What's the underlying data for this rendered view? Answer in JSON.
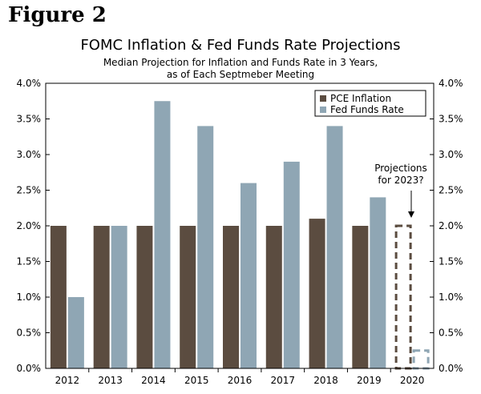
{
  "figure_label": "Figure 2",
  "chart_data": {
    "type": "bar",
    "title": "FOMC Inflation & Fed Funds Rate Projections",
    "subtitle_lines": [
      "Median Projection for Inflation and Funds Rate in 3 Years,",
      "as of Each Septmeber Meeting"
    ],
    "categories": [
      "2012",
      "2013",
      "2014",
      "2015",
      "2016",
      "2017",
      "2018",
      "2019",
      "2020"
    ],
    "series": [
      {
        "name": "PCE Inflation",
        "color": "#5b4c40",
        "values": [
          2.0,
          2.0,
          2.0,
          2.0,
          2.0,
          2.0,
          2.1,
          2.0,
          null
        ]
      },
      {
        "name": "Fed Funds Rate",
        "color": "#8fa6b4",
        "values": [
          1.0,
          2.0,
          3.75,
          3.4,
          2.6,
          2.9,
          3.4,
          2.4,
          null
        ]
      }
    ],
    "projection": {
      "category": "2020",
      "values": [
        2.0,
        0.25
      ],
      "annotation": [
        "Projections",
        "for 2023?"
      ]
    },
    "ylim": [
      0,
      4.0
    ],
    "yticks": [
      "0.0%",
      "0.5%",
      "1.0%",
      "1.5%",
      "2.0%",
      "2.5%",
      "3.0%",
      "3.5%",
      "4.0%"
    ],
    "legend_position": "top-right"
  }
}
